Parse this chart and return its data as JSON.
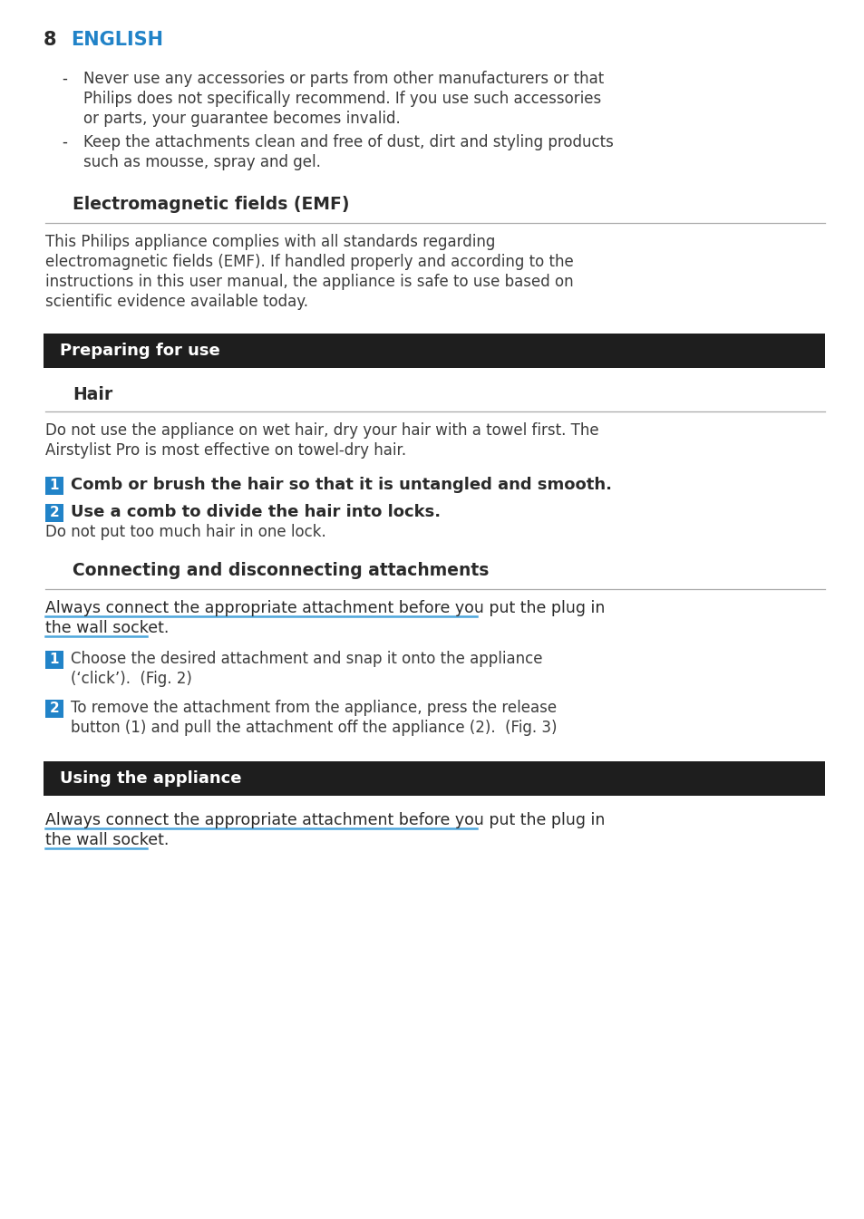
{
  "page_number": "8",
  "page_title": "ENGLISH",
  "blue_color": "#2183c8",
  "black_banner_color": "#1e1e1e",
  "white_text": "#ffffff",
  "body_text_color": "#3c3c3c",
  "text_color": "#2a2a2a",
  "underline_color": "#4da6dc",
  "background_color": "#ffffff",
  "line_color": "#aaaaaa",
  "emf_heading": "Electromagnetic fields (EMF)",
  "section1_heading": "Preparing for use",
  "subsection1_heading": "Hair",
  "hair_step1": "Comb or brush the hair so that it is untangled and smooth.",
  "hair_step2": "Use a comb to divide the hair into locks.",
  "hair_step2_note": "Do not put too much hair in one lock.",
  "section2_heading": "Connecting and disconnecting attachments",
  "warning_text_line1": "Always connect the appropriate attachment before you put the plug in",
  "warning_text_line2": "the wall socket.",
  "connect_step1_line1": "Choose the desired attachment and snap it onto the appliance",
  "connect_step1_line2": "(‘click’).  (Fig. 2)",
  "connect_step2_line1": "To remove the attachment from the appliance, press the release",
  "connect_step2_line2": "button (1) and pull the attachment off the appliance (2).  (Fig. 3)",
  "section3_heading": "Using the appliance"
}
